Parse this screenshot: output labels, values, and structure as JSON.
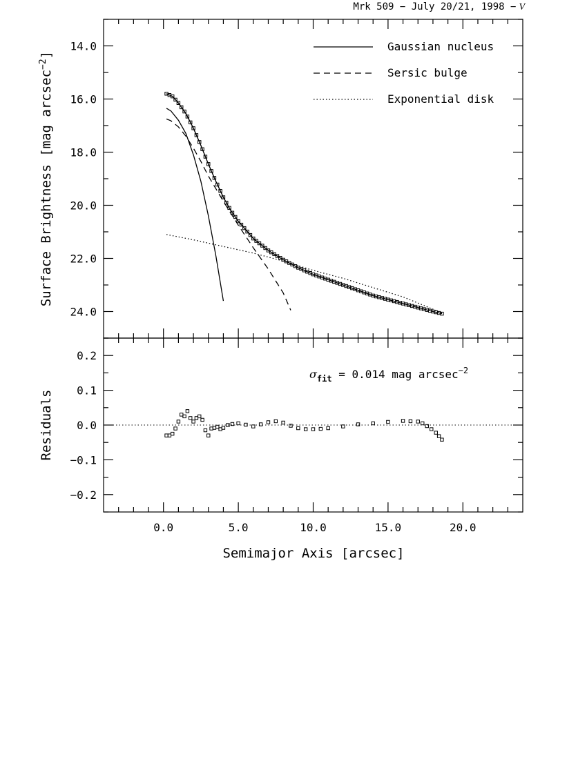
{
  "title": "Mrk 509 − July 20/21, 1998 −",
  "title_band": "V",
  "chart_data": [
    {
      "type": "line",
      "panel": "top",
      "ylabel": "Surface Brightness [mag arcsec",
      "ylabel_sup": "−2",
      "ylabel_close": "]",
      "xlim": [
        -4.0,
        24.0
      ],
      "ylim": [
        25.0,
        13.0
      ],
      "y_inverted": true,
      "yticks": [
        "14.0",
        "16.0",
        "18.0",
        "20.0",
        "22.0",
        "24.0"
      ],
      "legend": [
        {
          "name": "Gaussian nucleus",
          "style": "solid"
        },
        {
          "name": "Sersic bulge",
          "style": "dashed"
        },
        {
          "name": "Exponential disk",
          "style": "dotted"
        }
      ],
      "legend_position": "top-right",
      "series": [
        {
          "name": "Gaussian nucleus",
          "style": "solid",
          "x": [
            0.2,
            0.5,
            1.0,
            1.5,
            2.0,
            2.5,
            3.0,
            3.5,
            4.0
          ],
          "y": [
            16.35,
            16.45,
            16.8,
            17.3,
            18.1,
            19.1,
            20.4,
            21.9,
            23.6
          ]
        },
        {
          "name": "Sersic bulge",
          "style": "dashed",
          "x": [
            0.2,
            0.5,
            1.0,
            1.5,
            2.0,
            2.5,
            3.0,
            4.0,
            5.0,
            6.0,
            7.0,
            8.0,
            8.5
          ],
          "y": [
            16.75,
            16.82,
            17.05,
            17.4,
            17.85,
            18.35,
            18.9,
            19.85,
            20.75,
            21.6,
            22.4,
            23.3,
            23.95
          ]
        },
        {
          "name": "Exponential disk",
          "style": "dotted",
          "x": [
            0.2,
            2.0,
            4.0,
            6.0,
            8.0,
            10.0,
            12.0,
            14.0,
            16.0,
            18.6
          ],
          "y": [
            21.1,
            21.3,
            21.55,
            21.8,
            22.1,
            22.45,
            22.75,
            23.1,
            23.45,
            24.05
          ]
        },
        {
          "name": "data",
          "style": "markers",
          "x": [
            0.2,
            0.6,
            1.0,
            1.5,
            2.0,
            2.5,
            3.0,
            3.5,
            4.0,
            4.5,
            5.0,
            6.0,
            7.0,
            8.0,
            9.0,
            10.0,
            11.0,
            12.0,
            13.0,
            14.0,
            15.0,
            16.0,
            17.0,
            18.0,
            18.6
          ],
          "y": [
            15.8,
            15.9,
            16.15,
            16.55,
            17.1,
            17.75,
            18.45,
            19.1,
            19.7,
            20.2,
            20.6,
            21.25,
            21.7,
            22.05,
            22.35,
            22.6,
            22.8,
            23.0,
            23.2,
            23.4,
            23.55,
            23.7,
            23.85,
            24.0,
            24.08
          ]
        }
      ]
    },
    {
      "type": "scatter",
      "panel": "bottom",
      "xlabel": "Semimajor Axis [arcsec]",
      "ylabel": "Residuals",
      "xlim": [
        -4.0,
        24.0
      ],
      "ylim": [
        -0.25,
        0.25
      ],
      "xticks": [
        "0.0",
        "5.0",
        "10.0",
        "15.0",
        "20.0"
      ],
      "yticks": [
        "0.2",
        "0.1",
        "0.0",
        "−0.1",
        "−0.2"
      ],
      "reference_line": 0.0,
      "annotation": {
        "sigma": "σ",
        "sub": "fit",
        "text": " = 0.014 mag arcsec",
        "sup": "−2"
      },
      "series": [
        {
          "name": "residuals",
          "x": [
            0.2,
            0.4,
            0.6,
            0.8,
            1.0,
            1.2,
            1.4,
            1.6,
            1.8,
            2.0,
            2.2,
            2.4,
            2.6,
            2.8,
            3.0,
            3.2,
            3.4,
            3.6,
            3.8,
            4.0,
            4.3,
            4.6,
            5.0,
            5.5,
            6.0,
            6.5,
            7.0,
            7.5,
            8.0,
            8.5,
            9.0,
            9.5,
            10.0,
            10.5,
            11.0,
            12.0,
            13.0,
            14.0,
            15.0,
            16.0,
            16.5,
            17.0,
            17.3,
            17.6,
            17.9,
            18.2,
            18.4,
            18.6
          ],
          "y": [
            -0.03,
            -0.03,
            -0.025,
            -0.01,
            0.01,
            0.03,
            0.025,
            0.04,
            0.02,
            0.01,
            0.02,
            0.025,
            0.015,
            -0.015,
            -0.03,
            -0.01,
            -0.008,
            -0.005,
            -0.012,
            -0.008,
            0.0,
            0.003,
            0.005,
            0.001,
            -0.004,
            0.002,
            0.008,
            0.011,
            0.007,
            -0.002,
            -0.009,
            -0.012,
            -0.012,
            -0.011,
            -0.009,
            -0.004,
            0.002,
            0.005,
            0.009,
            0.012,
            0.011,
            0.01,
            0.005,
            -0.003,
            -0.012,
            -0.022,
            -0.032,
            -0.042
          ]
        }
      ]
    }
  ]
}
